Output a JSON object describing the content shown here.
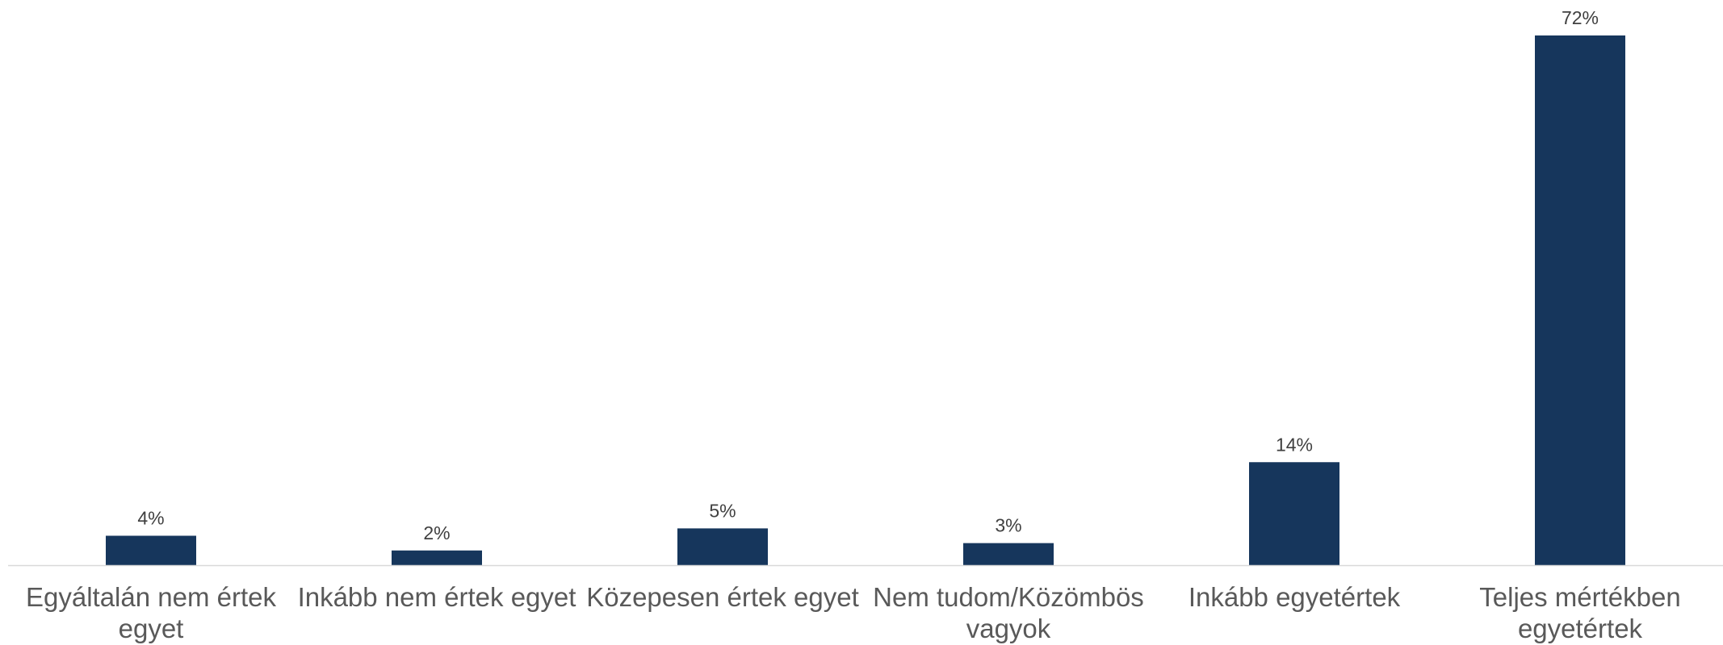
{
  "chart_data": {
    "type": "bar",
    "categories": [
      "Egyáltalán nem értek egyet",
      "Inkább nem értek egyet",
      "Közepesen értek egyet",
      "Nem tudom/Közömbös vagyok",
      "Inkább egyetértek",
      "Teljes mértékben egyetértek"
    ],
    "values": [
      4,
      2,
      5,
      3,
      14,
      72
    ],
    "value_labels": [
      "4%",
      "2%",
      "5%",
      "3%",
      "14%",
      "72%"
    ],
    "color": "#16365c"
  }
}
